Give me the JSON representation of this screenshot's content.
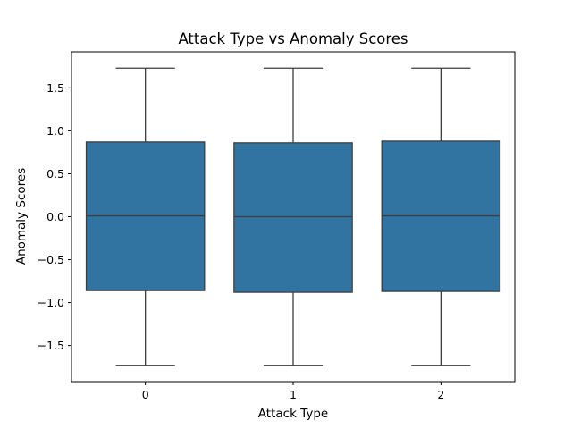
{
  "chart_data": {
    "type": "box",
    "title": "Attack Type vs Anomaly Scores",
    "xlabel": "Attack Type",
    "ylabel": "Anomaly Scores",
    "categories": [
      "0",
      "1",
      "2"
    ],
    "ylim": [
      -1.92,
      1.92
    ],
    "yticks": [
      1.5,
      1.0,
      0.5,
      0.0,
      -0.5,
      -1.0,
      -1.5
    ],
    "ytick_labels": [
      "1.5",
      "1.0",
      "0.5",
      "0.0",
      "−0.5",
      "−1.0",
      "−1.5"
    ],
    "boxes": [
      {
        "category": "0",
        "whisker_low": -1.73,
        "q1": -0.86,
        "median": 0.01,
        "q3": 0.87,
        "whisker_high": 1.73
      },
      {
        "category": "1",
        "whisker_low": -1.73,
        "q1": -0.88,
        "median": 0.0,
        "q3": 0.86,
        "whisker_high": 1.73
      },
      {
        "category": "2",
        "whisker_low": -1.73,
        "q1": -0.87,
        "median": 0.01,
        "q3": 0.88,
        "whisker_high": 1.73
      }
    ],
    "grid": false,
    "legend": "none",
    "colors": {
      "box_fill": "#3274a1",
      "line": "#3d3d3d",
      "frame": "#000000"
    }
  }
}
